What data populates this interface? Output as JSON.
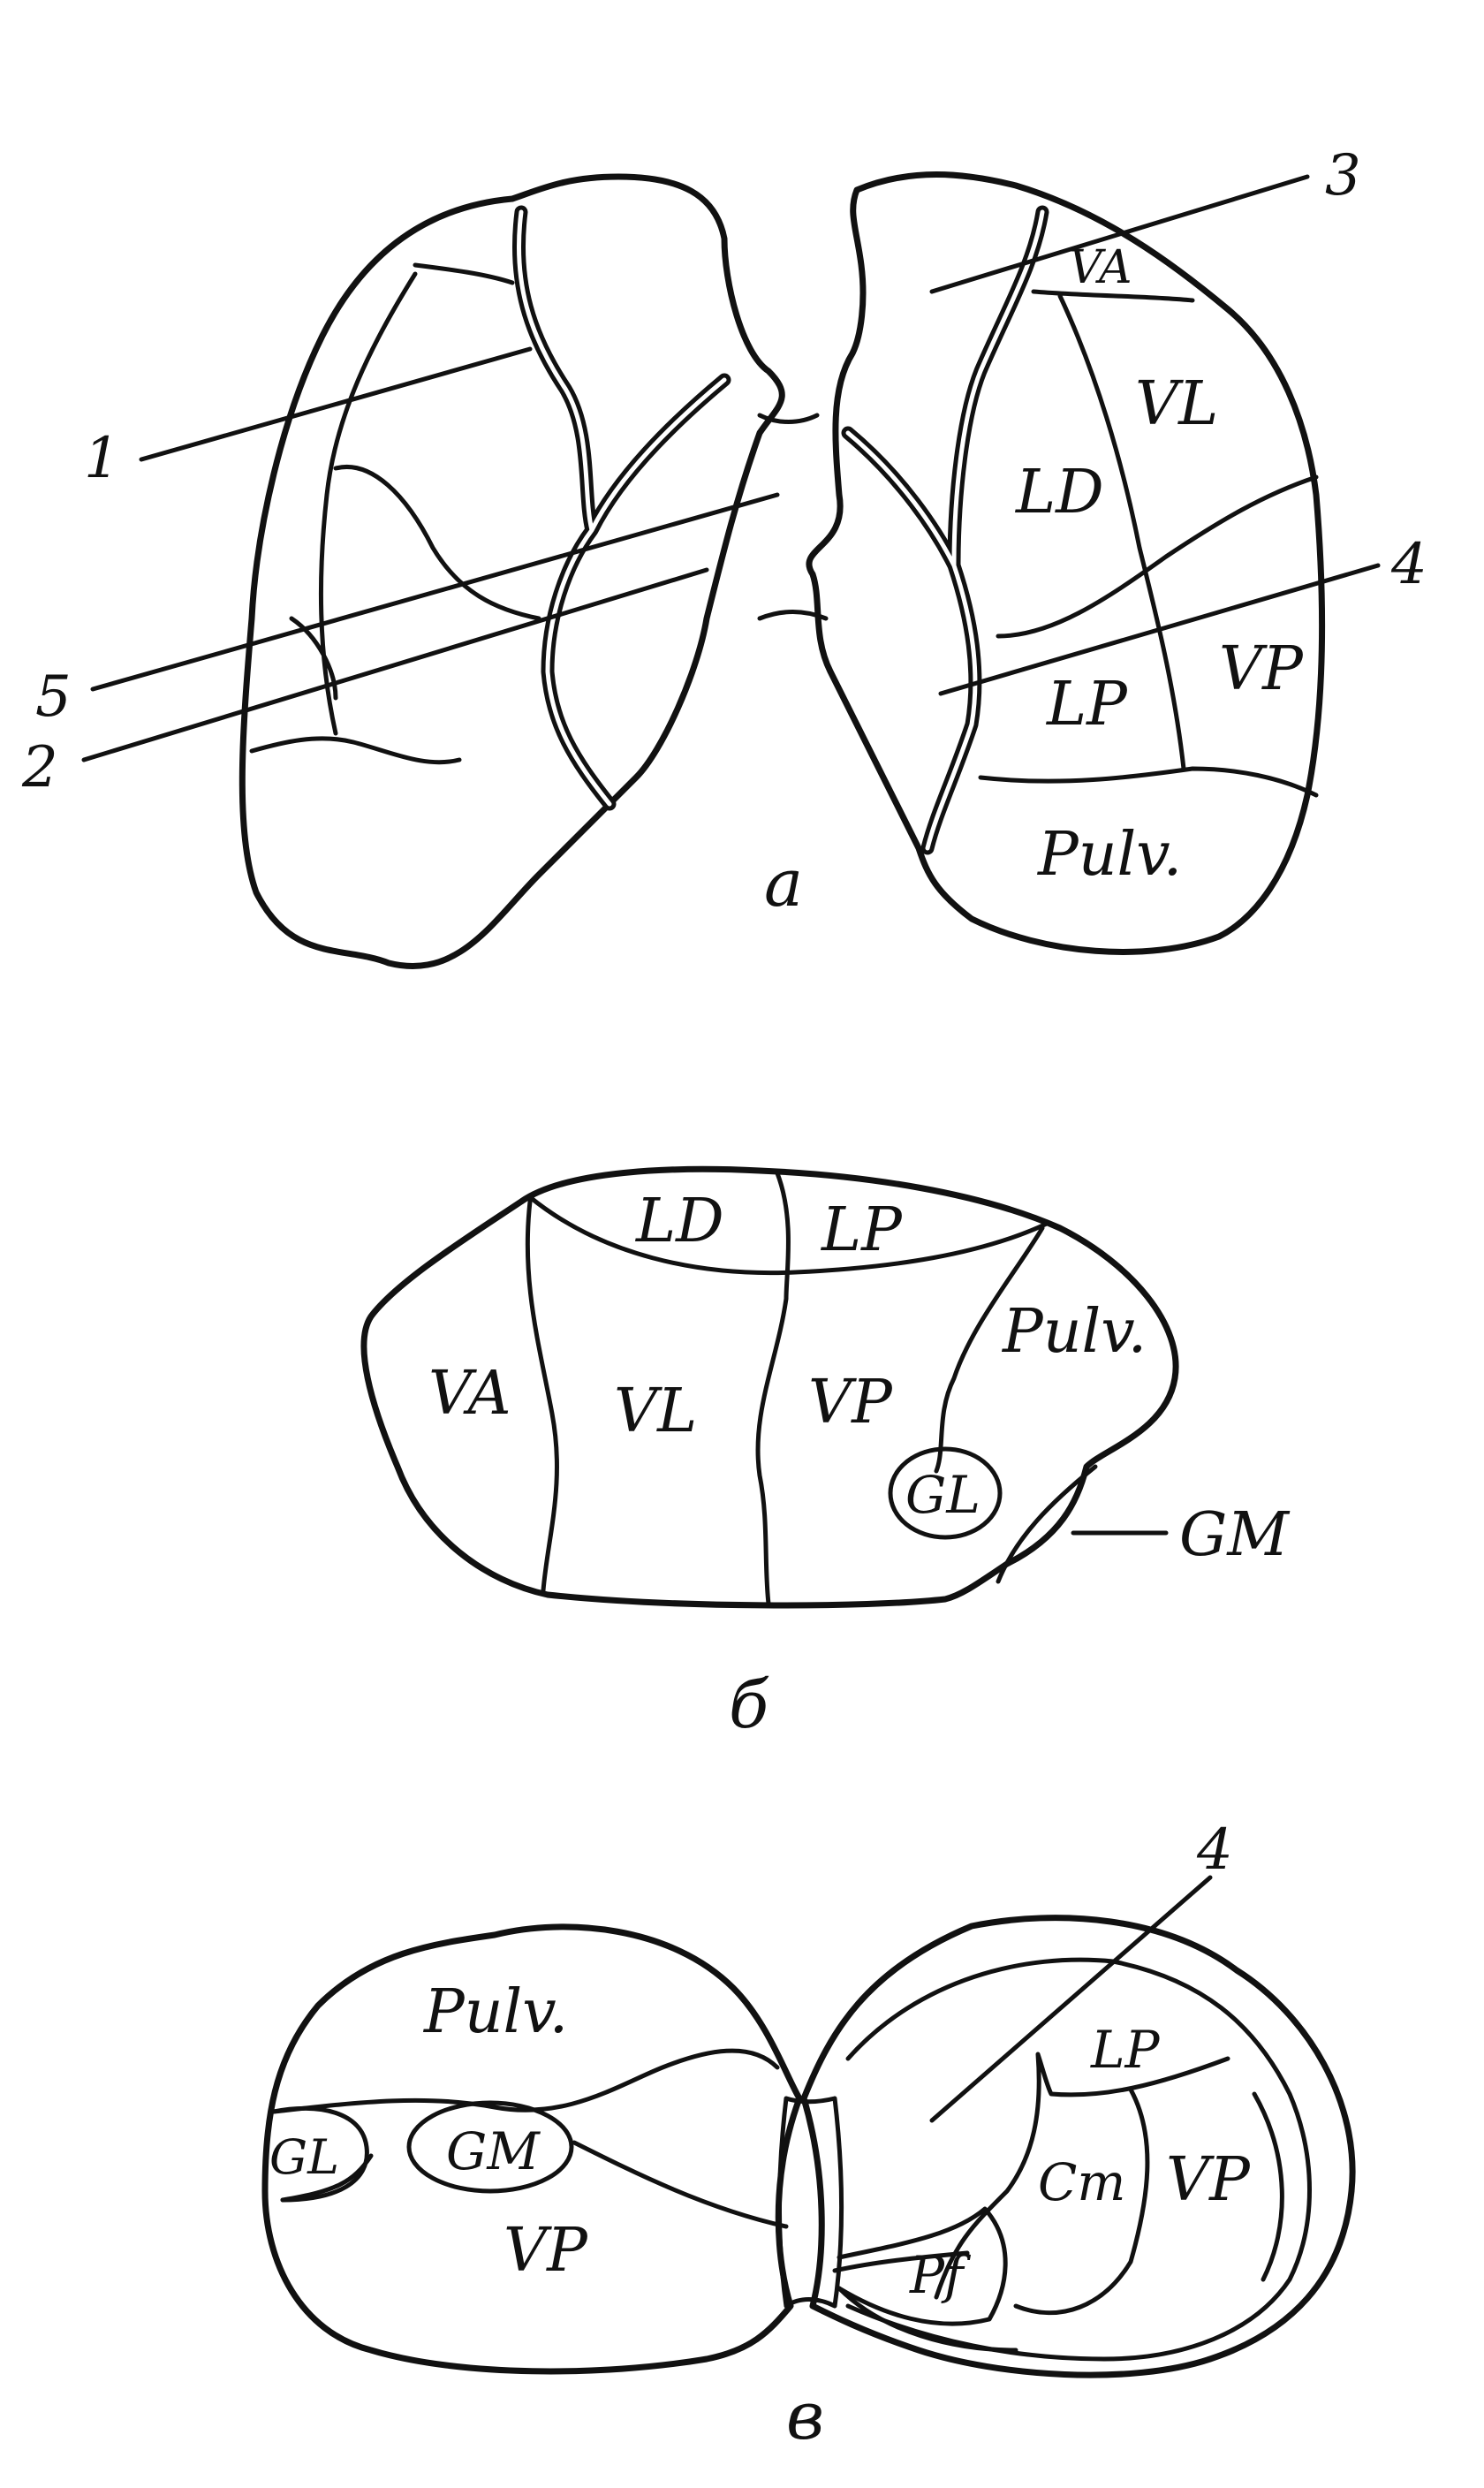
{
  "panel_a": {
    "caption": "а",
    "callouts": [
      "1",
      "2",
      "3",
      "4",
      "5"
    ],
    "regions": [
      "VA",
      "VL",
      "LD",
      "LP",
      "VP",
      "Pulv."
    ]
  },
  "panel_b": {
    "caption": "б",
    "callouts": [
      "GM"
    ],
    "regions": [
      "LD",
      "LP",
      "Pulv.",
      "VA",
      "VL",
      "VP",
      "GL"
    ]
  },
  "panel_c": {
    "caption": "в",
    "callouts": [
      "4"
    ],
    "regions": [
      "Pulv.",
      "GL",
      "GM",
      "VP",
      "LP",
      "Cm",
      "VP",
      "Pf"
    ]
  }
}
